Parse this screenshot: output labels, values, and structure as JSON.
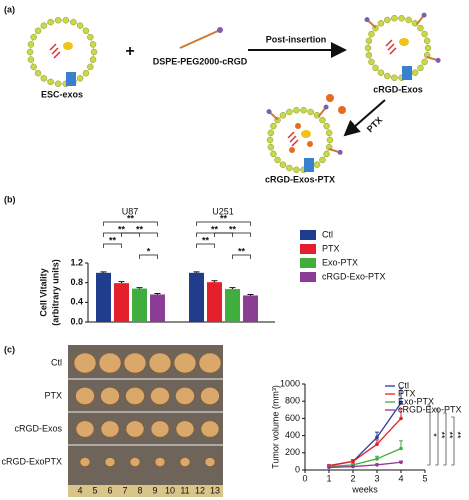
{
  "panels": [
    "(a)",
    "(b)",
    "(c)"
  ],
  "diagram": {
    "esc_label": "ESC-exos",
    "plus": "+",
    "ligand_label": "DSPE-PEG2000-cRGD",
    "step1": "Post-insertion",
    "crgd_label": "cRGD-Exos",
    "step2": "PTX",
    "final_label": "cRGD-Exos-PTX"
  },
  "photo": {
    "rows": [
      "Ctl",
      "PTX",
      "cRGD-Exos",
      "cRGD-ExoPTX"
    ],
    "ruler": [
      "4",
      "5",
      "6",
      "7",
      "8",
      "9",
      "10",
      "11",
      "12",
      "13"
    ]
  },
  "chart_data": [
    {
      "type": "bar",
      "ylabel": "Cell Vitality",
      "ylabel2": "(arbitrary units)",
      "categories": [
        "U87",
        "U251"
      ],
      "series": [
        {
          "name": "Ctl",
          "color": "#1f3d8c",
          "values": [
            1.0,
            1.0
          ],
          "errors": [
            0.02,
            0.02
          ]
        },
        {
          "name": "PTX",
          "color": "#e3202b",
          "values": [
            0.79,
            0.81
          ],
          "errors": [
            0.03,
            0.03
          ]
        },
        {
          "name": "Exo-PTX",
          "color": "#3fae3f",
          "values": [
            0.68,
            0.67
          ],
          "errors": [
            0.02,
            0.03
          ]
        },
        {
          "name": "cRGD-Exo-PTX",
          "color": "#8b3c94",
          "values": [
            0.56,
            0.54
          ],
          "errors": [
            0.02,
            0.02
          ]
        }
      ],
      "significance": [
        [
          "**",
          "**",
          "**",
          "**",
          "*"
        ],
        [
          "**",
          "**",
          "**",
          "**",
          "**"
        ]
      ],
      "ylim": [
        0,
        1.2
      ],
      "yticks": [
        {
          "value": 0,
          "label": "0.0"
        },
        {
          "value": 0.4,
          "label": "0.4"
        },
        {
          "value": 0.8,
          "label": "0.8"
        },
        {
          "value": 1.2,
          "label": "1.2"
        }
      ]
    },
    {
      "type": "line",
      "ylabel": "Tumor volume (mm³)",
      "xlabel": "weeks",
      "x": [
        1,
        2,
        3,
        4
      ],
      "series": [
        {
          "name": "Ctl",
          "color": "#2b3d9b",
          "values": [
            50,
            100,
            380,
            780
          ],
          "errors": [
            10,
            20,
            60,
            170
          ]
        },
        {
          "name": "PTX",
          "color": "#e3202b",
          "values": [
            50,
            100,
            300,
            600
          ],
          "errors": [
            10,
            20,
            50,
            110
          ]
        },
        {
          "name": "Exo-PTX",
          "color": "#3fae3f",
          "values": [
            40,
            60,
            130,
            250
          ],
          "errors": [
            8,
            15,
            30,
            90
          ]
        },
        {
          "name": "cRGD-Exo-PTX",
          "color": "#8b3c94",
          "values": [
            30,
            40,
            60,
            90
          ],
          "errors": [
            5,
            8,
            10,
            15
          ]
        }
      ],
      "significance": [
        "*",
        "**",
        "**",
        "**"
      ],
      "xlim": [
        0,
        5
      ],
      "xticks": [
        0,
        1,
        2,
        3,
        4,
        5
      ],
      "ylim": [
        0,
        1000
      ],
      "yticks": [
        0,
        200,
        400,
        600,
        800,
        1000
      ]
    }
  ]
}
